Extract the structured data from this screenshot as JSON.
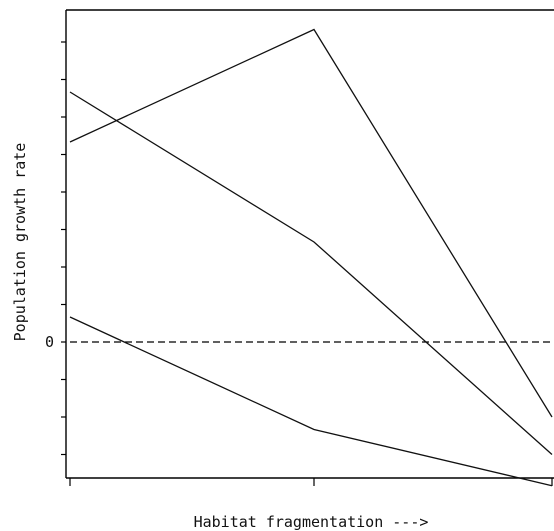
{
  "chart_data": {
    "type": "line",
    "xlabel": "Habitat fragmentation --->",
    "ylabel": "Population growth rate",
    "title": "",
    "x": [
      0,
      1,
      2
    ],
    "ylim": [
      -1.0,
      2.6
    ],
    "ytick_labels": [
      {
        "value": 0,
        "label": "0"
      }
    ],
    "series": [
      {
        "values": [
          1.6,
          2.5,
          -0.6
        ]
      },
      {
        "values": [
          2.0,
          0.8,
          -0.9
        ]
      },
      {
        "values": [
          0.2,
          -0.7,
          -1.15
        ]
      }
    ],
    "reference_lines": [
      {
        "y": 0,
        "style": "dashed"
      }
    ],
    "grid": false,
    "legend": "none"
  }
}
